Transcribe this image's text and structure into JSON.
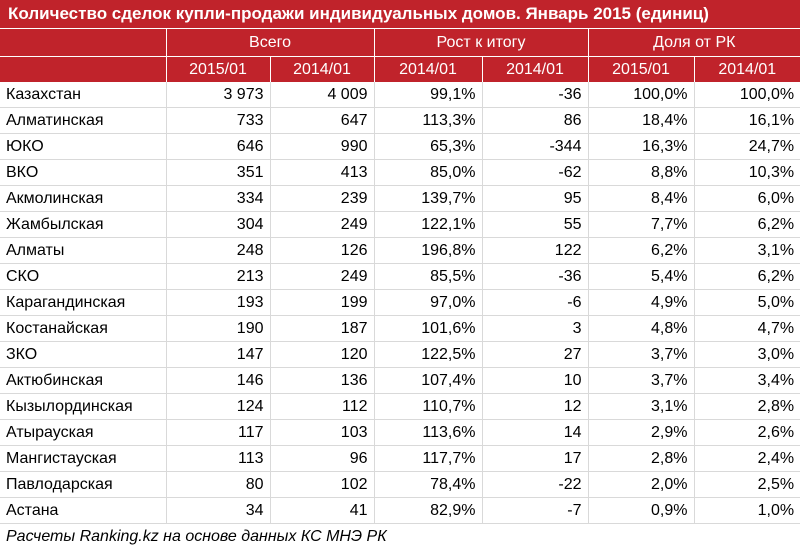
{
  "title": "Количество сделок купли-продажи индивидуальных домов. Январь 2015 (единиц)",
  "groups": [
    "Всего",
    "Рост к итогу",
    "Доля от РК"
  ],
  "subheaders": [
    "2015/01",
    "2014/01",
    "2014/01",
    "2014/01",
    "2015/01",
    "2014/01"
  ],
  "rows": [
    {
      "name": "Казахстан",
      "c1": "3 973",
      "c2": "4 009",
      "c3": "99,1%",
      "c4": "-36",
      "c5": "100,0%",
      "c6": "100,0%"
    },
    {
      "name": "Алматинская",
      "c1": "733",
      "c2": "647",
      "c3": "113,3%",
      "c4": "86",
      "c5": "18,4%",
      "c6": "16,1%"
    },
    {
      "name": "ЮКО",
      "c1": "646",
      "c2": "990",
      "c3": "65,3%",
      "c4": "-344",
      "c5": "16,3%",
      "c6": "24,7%"
    },
    {
      "name": "ВКО",
      "c1": "351",
      "c2": "413",
      "c3": "85,0%",
      "c4": "-62",
      "c5": "8,8%",
      "c6": "10,3%"
    },
    {
      "name": "Акмолинская",
      "c1": "334",
      "c2": "239",
      "c3": "139,7%",
      "c4": "95",
      "c5": "8,4%",
      "c6": "6,0%"
    },
    {
      "name": "Жамбылская",
      "c1": "304",
      "c2": "249",
      "c3": "122,1%",
      "c4": "55",
      "c5": "7,7%",
      "c6": "6,2%"
    },
    {
      "name": "Алматы",
      "c1": "248",
      "c2": "126",
      "c3": "196,8%",
      "c4": "122",
      "c5": "6,2%",
      "c6": "3,1%"
    },
    {
      "name": "СКО",
      "c1": "213",
      "c2": "249",
      "c3": "85,5%",
      "c4": "-36",
      "c5": "5,4%",
      "c6": "6,2%"
    },
    {
      "name": "Карагандинская",
      "c1": "193",
      "c2": "199",
      "c3": "97,0%",
      "c4": "-6",
      "c5": "4,9%",
      "c6": "5,0%"
    },
    {
      "name": "Костанайская",
      "c1": "190",
      "c2": "187",
      "c3": "101,6%",
      "c4": "3",
      "c5": "4,8%",
      "c6": "4,7%"
    },
    {
      "name": "ЗКО",
      "c1": "147",
      "c2": "120",
      "c3": "122,5%",
      "c4": "27",
      "c5": "3,7%",
      "c6": "3,0%"
    },
    {
      "name": "Актюбинская",
      "c1": "146",
      "c2": "136",
      "c3": "107,4%",
      "c4": "10",
      "c5": "3,7%",
      "c6": "3,4%"
    },
    {
      "name": "Кызылординская",
      "c1": "124",
      "c2": "112",
      "c3": "110,7%",
      "c4": "12",
      "c5": "3,1%",
      "c6": "2,8%"
    },
    {
      "name": "Атырауская",
      "c1": "117",
      "c2": "103",
      "c3": "113,6%",
      "c4": "14",
      "c5": "2,9%",
      "c6": "2,6%"
    },
    {
      "name": "Мангистауская",
      "c1": "113",
      "c2": "96",
      "c3": "117,7%",
      "c4": "17",
      "c5": "2,8%",
      "c6": "2,4%"
    },
    {
      "name": "Павлодарская",
      "c1": "80",
      "c2": "102",
      "c3": "78,4%",
      "c4": "-22",
      "c5": "2,0%",
      "c6": "2,5%"
    },
    {
      "name": "Астана",
      "c1": "34",
      "c2": "41",
      "c3": "82,9%",
      "c4": "-7",
      "c5": "0,9%",
      "c6": "1,0%"
    }
  ],
  "footer": "Расчеты Ranking.kz на основе данных КС МНЭ РК",
  "colors": {
    "header_bg": "#c0232b",
    "header_text": "#ffffff",
    "grid": "#d9d9d9"
  }
}
